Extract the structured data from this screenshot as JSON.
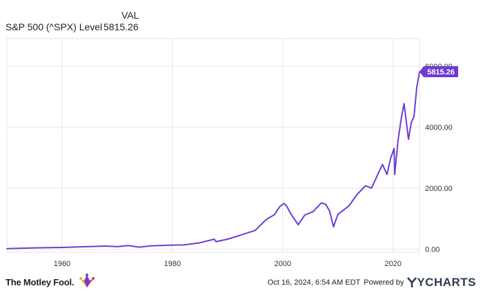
{
  "legend": {
    "column_header": "VAL",
    "series_label": "S&P 500 (^SPX) Level",
    "series_value": "5815.26"
  },
  "colors": {
    "series": "#6e3bd3",
    "grid": "#e6e6e6",
    "axis_text": "#333333"
  },
  "footer": {
    "brand": "The Motley Fool.",
    "brand_icon": "jester-hat-icon",
    "timestamp": "Oct 16, 2024, 6:54 AM EDT",
    "powered_by": "Powered by",
    "provider": "YCHARTS",
    "provider_icon": "ycharts-y-icon"
  },
  "chart_data": {
    "type": "line",
    "title": "",
    "xlabel": "",
    "ylabel": "",
    "xlim": [
      1950,
      2024.8
    ],
    "ylim": [
      -100,
      6900
    ],
    "x_ticks": [
      1960,
      1980,
      2000,
      2020
    ],
    "x_tick_labels": [
      "1960",
      "1980",
      "2000",
      "2020"
    ],
    "y_ticks": [
      0,
      2000,
      4000,
      6000
    ],
    "y_tick_labels": [
      "0.00",
      "2000.00",
      "4000.00",
      "6000.00"
    ],
    "y_axis_position": "right",
    "grid": true,
    "last_value_label": "5815.26",
    "series": [
      {
        "name": "S&P 500 (^SPX) Level",
        "x": [
          1950,
          1955,
          1960,
          1965,
          1968,
          1970,
          1972,
          1974,
          1976,
          1980,
          1982,
          1985,
          1987.6,
          1987.9,
          1990,
          1992,
          1995,
          1997,
          1998.5,
          1999.5,
          2000.2,
          2000.7,
          2001.5,
          2002.8,
          2004,
          2005.5,
          2007,
          2007.8,
          2008.5,
          2009.2,
          2010,
          2011,
          2012,
          2013.5,
          2015,
          2016.1,
          2017.5,
          2018.1,
          2018.9,
          2019.6,
          2020.2,
          2020.3,
          2020.9,
          2021.5,
          2022,
          2022.8,
          2023.3,
          2023.8,
          2024.3,
          2024.8
        ],
        "y": [
          17,
          45,
          58,
          88,
          103,
          83,
          118,
          68,
          107,
          135,
          140,
          211,
          330,
          247,
          330,
          440,
          615,
          970,
          1130,
          1400,
          1500,
          1420,
          1150,
          800,
          1120,
          1230,
          1520,
          1470,
          1250,
          735,
          1140,
          1280,
          1420,
          1800,
          2080,
          2000,
          2550,
          2780,
          2450,
          3000,
          3300,
          2450,
          3550,
          4300,
          4770,
          3600,
          4150,
          4350,
          5300,
          5815.26
        ]
      }
    ]
  }
}
